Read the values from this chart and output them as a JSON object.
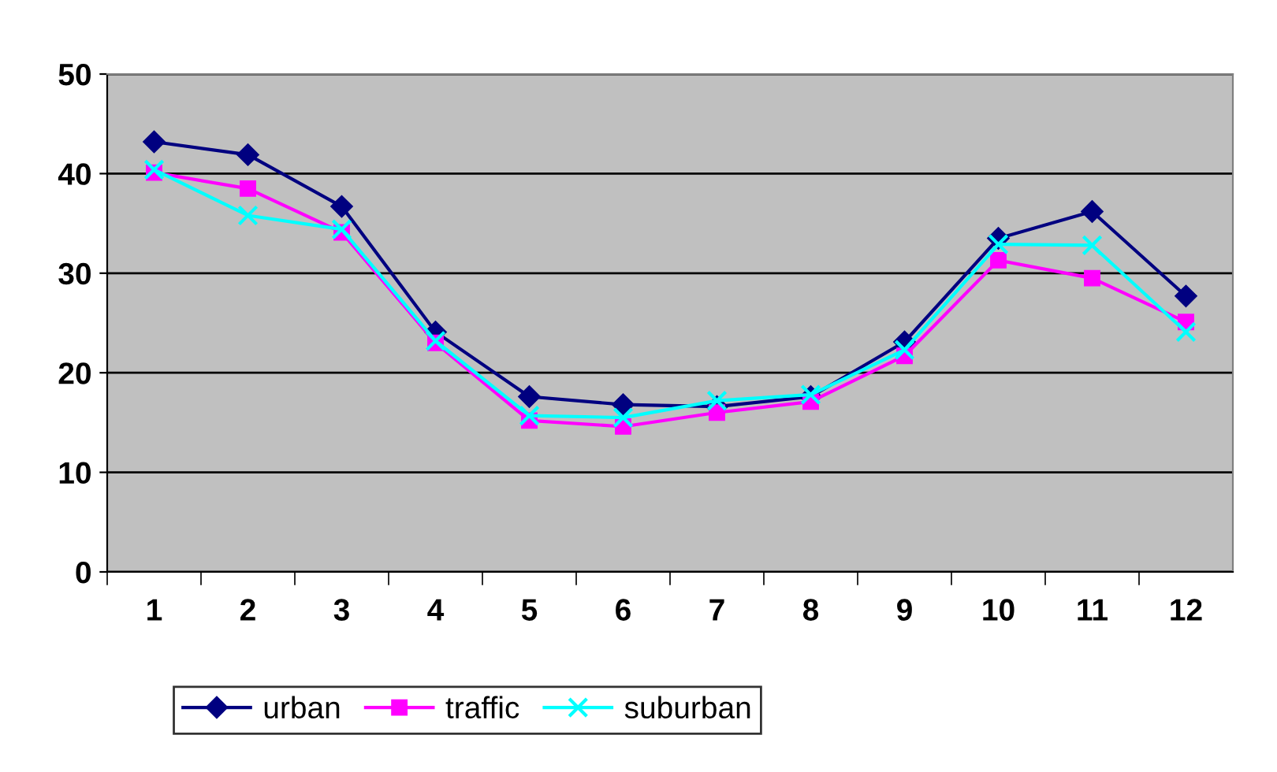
{
  "chart_data": {
    "type": "line",
    "categories": [
      "1",
      "2",
      "3",
      "4",
      "5",
      "6",
      "7",
      "8",
      "9",
      "10",
      "11",
      "12"
    ],
    "series": [
      {
        "name": "urban",
        "color": "#000080",
        "marker": "diamond",
        "values": [
          43.2,
          41.9,
          36.7,
          24.1,
          17.6,
          16.8,
          16.6,
          17.6,
          23.1,
          33.5,
          36.2,
          27.7
        ]
      },
      {
        "name": "traffic",
        "color": "#ff00ff",
        "marker": "square",
        "values": [
          40.1,
          38.5,
          34.1,
          23.0,
          15.2,
          14.6,
          16.0,
          17.1,
          21.7,
          31.3,
          29.5,
          25.1
        ]
      },
      {
        "name": "suburban",
        "color": "#00ffff",
        "marker": "cross",
        "values": [
          40.4,
          35.8,
          34.4,
          23.2,
          15.7,
          15.5,
          17.2,
          17.8,
          22.3,
          32.9,
          32.8,
          24.1
        ]
      }
    ],
    "ylim": [
      0,
      50
    ],
    "yticks": [
      0,
      10,
      20,
      30,
      40,
      50
    ],
    "grid": "y",
    "legend": "bottom",
    "line_style": "solid"
  }
}
